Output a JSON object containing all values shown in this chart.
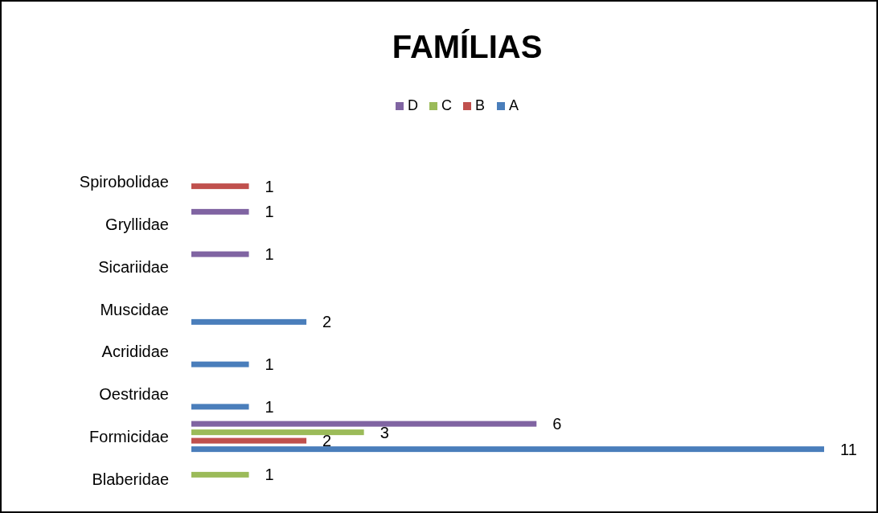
{
  "chart_data": {
    "type": "bar",
    "orientation": "horizontal",
    "title": "FAMÍLIAS",
    "categories": [
      "Spirobolidae",
      "Gryllidae",
      "Sicariidae",
      "Muscidae",
      "Acrididae",
      "Oestridae",
      "Formicidae",
      "Blaberidae"
    ],
    "series": [
      {
        "name": "A",
        "color": "#4a7ebb",
        "values": [
          null,
          null,
          null,
          2,
          1,
          1,
          11,
          null
        ]
      },
      {
        "name": "B",
        "color": "#c0504d",
        "values": [
          1,
          null,
          null,
          null,
          null,
          null,
          2,
          null
        ]
      },
      {
        "name": "C",
        "color": "#9bbb59",
        "values": [
          null,
          null,
          null,
          null,
          null,
          null,
          3,
          1
        ]
      },
      {
        "name": "D",
        "color": "#8064a2",
        "values": [
          null,
          1,
          1,
          null,
          null,
          null,
          6,
          null
        ]
      }
    ],
    "data_labels": true,
    "legend": "top",
    "grid": false
  }
}
